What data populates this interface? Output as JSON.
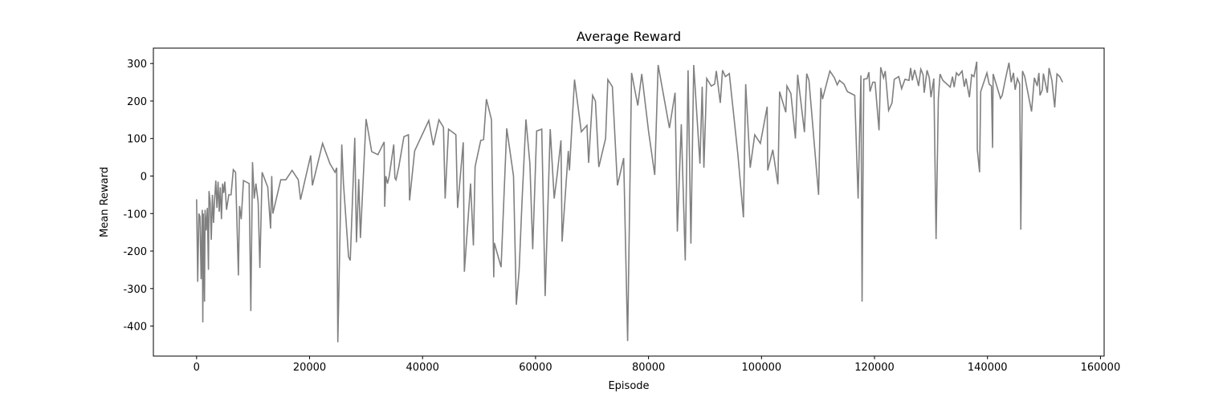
{
  "chart_data": {
    "type": "line",
    "title": "Average Reward",
    "x_label": "Episode",
    "y_label": "Mean Reward",
    "color": "#808080",
    "x": [
      0,
      200,
      400,
      600,
      800,
      1000,
      1100,
      1200,
      1400,
      1500,
      1700,
      1900,
      2100,
      2200,
      2400,
      2600,
      2800,
      3000,
      3200,
      3400,
      3600,
      3800,
      4000,
      4200,
      4400,
      4600,
      4800,
      5000,
      5300,
      5700,
      6100,
      6500,
      6900,
      7400,
      7600,
      7900,
      8300,
      9300,
      9600,
      9900,
      10200,
      10500,
      10900,
      11200,
      11600,
      12600,
      13100,
      13300,
      13500,
      14900,
      15800,
      16900,
      18000,
      18400,
      19200,
      20200,
      20500,
      22300,
      23600,
      24500,
      24800,
      25000,
      25700,
      26000,
      26900,
      27200,
      28000,
      28300,
      28700,
      29000,
      30000,
      31000,
      32100,
      33200,
      33300,
      33500,
      33800,
      34100,
      34900,
      35100,
      35300,
      35800,
      36700,
      37500,
      37700,
      38600,
      41100,
      41900,
      42900,
      43700,
      44000,
      44600,
      45900,
      46200,
      47200,
      47400,
      48500,
      49000,
      49300,
      50300,
      50800,
      51300,
      52200,
      52600,
      52700,
      53900,
      54900,
      56100,
      56600,
      57100,
      57600,
      58300,
      59000,
      59500,
      60200,
      61100,
      61700,
      62600,
      63300,
      63800,
      64500,
      64700,
      65800,
      66000,
      66900,
      68100,
      69100,
      69400,
      70100,
      70600,
      71200,
      72400,
      72800,
      73600,
      74500,
      75600,
      76300,
      77000,
      78100,
      78800,
      80000,
      81100,
      81700,
      83700,
      84700,
      85100,
      85800,
      86500,
      87000,
      87500,
      88000,
      89100,
      89500,
      89800,
      90300,
      91100,
      91700,
      92000,
      92700,
      93100,
      93600,
      94300,
      95800,
      96800,
      97200,
      98000,
      98800,
      99800,
      101000,
      101100,
      102000,
      102900,
      103200,
      104300,
      104500,
      105200,
      106000,
      106400,
      107600,
      108000,
      108400,
      110100,
      110500,
      110800,
      112100,
      112900,
      113400,
      113800,
      114600,
      115200,
      116500,
      117100,
      117600,
      117800,
      118100,
      118700,
      119000,
      119200,
      119700,
      120100,
      120800,
      121100,
      121600,
      121900,
      122500,
      123100,
      123500,
      124300,
      124800,
      125400,
      126100,
      126400,
      126700,
      127100,
      127500,
      127800,
      128200,
      128600,
      128800,
      129300,
      129700,
      130000,
      130500,
      130900,
      131300,
      131600,
      132100,
      133400,
      133800,
      134100,
      134500,
      134900,
      135500,
      135900,
      136200,
      136800,
      137200,
      137600,
      138100,
      138200,
      138600,
      138800,
      139900,
      140300,
      140700,
      140900,
      141000,
      142300,
      142600,
      143200,
      143800,
      144200,
      144600,
      144900,
      145300,
      145700,
      145900,
      146200,
      146600,
      147800,
      148300,
      148800,
      149100,
      149300,
      149700,
      149900,
      150600,
      150900,
      151400,
      151900,
      152300,
      152800,
      153300
    ],
    "values": [
      -62,
      -282,
      -100,
      -108,
      -275,
      -90,
      -390,
      -100,
      -335,
      -90,
      -145,
      -85,
      -250,
      -40,
      -70,
      -170,
      -50,
      -125,
      -60,
      -12,
      -85,
      -15,
      -95,
      -30,
      -115,
      -20,
      -45,
      -15,
      -90,
      -50,
      -50,
      17,
      10,
      -265,
      -80,
      -115,
      -12,
      -20,
      -360,
      37,
      -60,
      -20,
      -70,
      -245,
      10,
      -30,
      -140,
      0,
      -100,
      -10,
      -10,
      15,
      -10,
      -63,
      -10,
      55,
      -25,
      87,
      33,
      10,
      22,
      -443,
      84,
      -20,
      -215,
      -225,
      102,
      -177,
      -8,
      -165,
      152,
      65,
      57,
      91,
      -82,
      0,
      -20,
      0,
      84,
      -5,
      -10,
      25,
      105,
      110,
      -65,
      67,
      148,
      82,
      150,
      130,
      -60,
      125,
      110,
      -85,
      90,
      -255,
      -20,
      -185,
      25,
      95,
      97,
      205,
      150,
      -270,
      -178,
      -243,
      127,
      0,
      -343,
      -250,
      -70,
      151,
      33,
      -195,
      120,
      125,
      -320,
      125,
      -60,
      0,
      95,
      -175,
      67,
      15,
      257,
      118,
      135,
      35,
      215,
      200,
      24,
      100,
      257,
      238,
      -25,
      48,
      -440,
      275,
      188,
      272,
      120,
      3,
      296,
      128,
      222,
      -148,
      138,
      -225,
      282,
      -180,
      296,
      33,
      238,
      22,
      260,
      240,
      245,
      280,
      195,
      282,
      265,
      273,
      60,
      -110,
      245,
      22,
      110,
      87,
      185,
      15,
      70,
      -22,
      225,
      170,
      240,
      220,
      100,
      270,
      117,
      273,
      255,
      -50,
      235,
      205,
      280,
      262,
      243,
      255,
      245,
      225,
      215,
      -60,
      268,
      -335,
      258,
      260,
      277,
      225,
      250,
      250,
      122,
      290,
      262,
      280,
      175,
      195,
      258,
      265,
      233,
      258,
      255,
      288,
      255,
      283,
      260,
      240,
      285,
      270,
      222,
      282,
      262,
      210,
      260,
      -168,
      205,
      272,
      255,
      237,
      265,
      237,
      275,
      268,
      280,
      238,
      260,
      210,
      270,
      265,
      305,
      70,
      10,
      225,
      275,
      245,
      240,
      75,
      272,
      207,
      215,
      260,
      302,
      250,
      275,
      230,
      260,
      245,
      -143,
      280,
      265,
      172,
      262,
      240,
      275,
      215,
      230,
      273,
      222,
      288,
      255,
      183,
      272,
      265,
      250
    ],
    "xlim": [
      -7650,
      160650
    ],
    "ylim": [
      -480,
      341
    ],
    "xticks": [
      0,
      20000,
      40000,
      60000,
      80000,
      100000,
      120000,
      140000,
      160000
    ],
    "yticks": [
      -400,
      -300,
      -200,
      -100,
      0,
      100,
      200,
      300
    ]
  }
}
